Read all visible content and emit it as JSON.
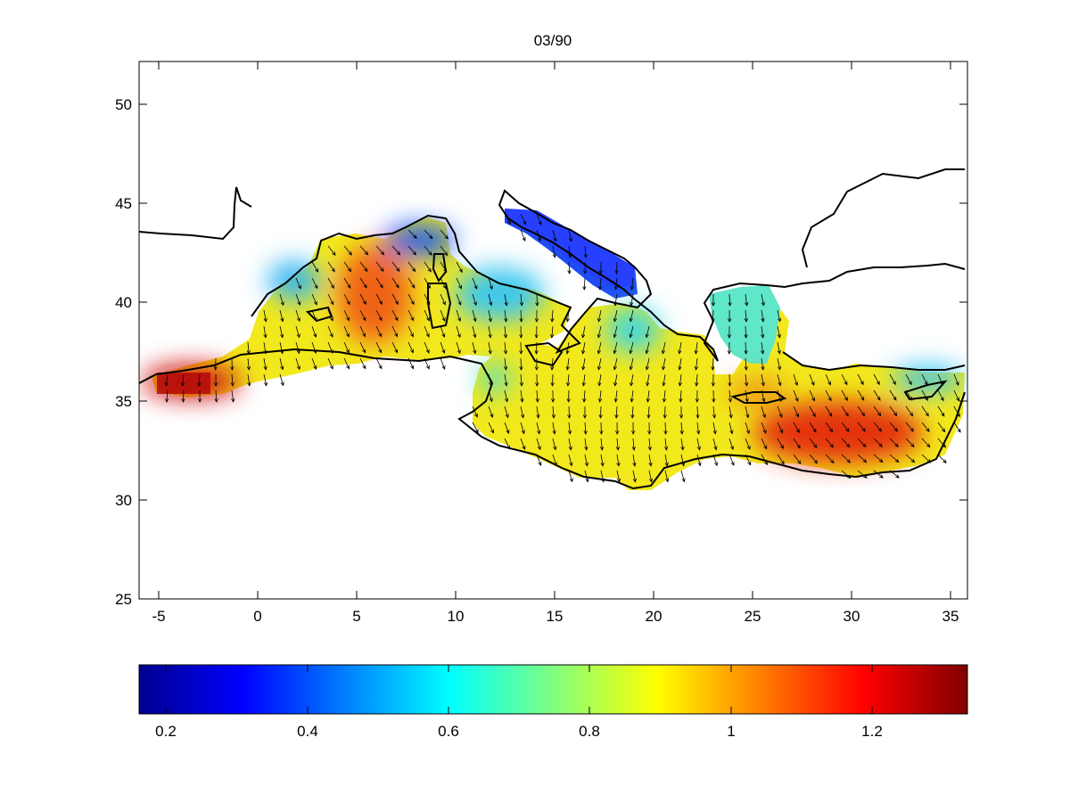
{
  "title": "03/90",
  "map": {
    "lon_range": [
      -6,
      36
    ],
    "lat_range": [
      25,
      52.2
    ],
    "x_ticks": [
      -5,
      0,
      5,
      10,
      15,
      20,
      25,
      30,
      35
    ],
    "y_ticks": [
      25,
      30,
      35,
      40,
      45,
      50
    ]
  },
  "colorbar": {
    "colormap": "jet",
    "range": [
      0.16,
      1.34
    ],
    "ticks": [
      0.2,
      0.4,
      0.6,
      0.8,
      1,
      1.2
    ]
  },
  "colors": {
    "land_outline": "#000000",
    "background": "#ffffff",
    "arrow": "#000000"
  }
}
